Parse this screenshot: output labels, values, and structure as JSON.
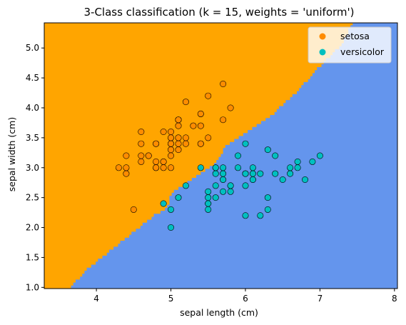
{
  "chart_data": {
    "type": "scatter",
    "title": "3-Class classification (k = 15, weights = 'uniform')",
    "xlabel": "sepal length (cm)",
    "ylabel": "sepal width (cm)",
    "xlim": [
      3.3,
      8.04
    ],
    "ylim": [
      0.98,
      5.42
    ],
    "x_ticks": [
      "4",
      "5",
      "6",
      "7",
      "8"
    ],
    "y_ticks": [
      "1.0",
      "1.5",
      "2.0",
      "2.5",
      "3.0",
      "3.5",
      "4.0",
      "4.5",
      "5.0"
    ],
    "grid": false,
    "legend": "top-right",
    "colors": {
      "region_setosa": "#ffa500",
      "region_versicolor": "#6495ed",
      "point_setosa": "#ff8c00",
      "point_versicolor": "#00bfbf",
      "edge": "#000000"
    },
    "decision_boundary": [
      [
        3.65,
        0.98
      ],
      [
        3.9,
        1.3
      ],
      [
        4.15,
        1.55
      ],
      [
        4.45,
        1.85
      ],
      [
        4.8,
        2.2
      ],
      [
        4.95,
        2.3
      ],
      [
        5.0,
        2.55
      ],
      [
        5.25,
        2.75
      ],
      [
        5.6,
        3.05
      ],
      [
        5.75,
        3.35
      ],
      [
        6.0,
        3.55
      ],
      [
        6.35,
        3.85
      ],
      [
        6.7,
        4.25
      ],
      [
        6.95,
        4.6
      ],
      [
        7.3,
        5.05
      ],
      [
        7.45,
        5.42
      ]
    ],
    "series": [
      {
        "name": "setosa",
        "x": [
          4.3,
          4.4,
          4.4,
          4.4,
          4.5,
          4.6,
          4.6,
          4.6,
          4.6,
          4.7,
          4.7,
          4.8,
          4.8,
          4.8,
          4.8,
          4.8,
          4.9,
          4.9,
          4.9,
          4.9,
          5.0,
          5.0,
          5.0,
          5.0,
          5.0,
          5.0,
          5.0,
          5.0,
          5.1,
          5.1,
          5.1,
          5.1,
          5.1,
          5.1,
          5.1,
          5.1,
          5.2,
          5.2,
          5.2,
          5.3,
          5.4,
          5.4,
          5.4,
          5.4,
          5.4,
          5.5,
          5.5,
          5.7,
          5.7,
          5.8
        ],
        "y": [
          3.0,
          2.9,
          3.0,
          3.2,
          2.3,
          3.1,
          3.2,
          3.4,
          3.6,
          3.2,
          3.2,
          3.0,
          3.0,
          3.1,
          3.4,
          3.4,
          3.0,
          3.1,
          3.1,
          3.6,
          3.0,
          3.2,
          3.3,
          3.4,
          3.4,
          3.5,
          3.5,
          3.6,
          3.3,
          3.4,
          3.5,
          3.5,
          3.7,
          3.8,
          3.8,
          3.8,
          3.4,
          3.5,
          4.1,
          3.7,
          3.4,
          3.4,
          3.7,
          3.9,
          3.9,
          3.5,
          4.2,
          3.8,
          4.4,
          4.0
        ]
      },
      {
        "name": "versicolor",
        "x": [
          4.9,
          5.0,
          5.0,
          5.1,
          5.2,
          5.4,
          5.5,
          5.5,
          5.5,
          5.5,
          5.5,
          5.6,
          5.6,
          5.6,
          5.6,
          5.6,
          5.7,
          5.7,
          5.7,
          5.7,
          5.7,
          5.8,
          5.8,
          5.8,
          5.9,
          5.9,
          6.0,
          6.0,
          6.0,
          6.0,
          6.0,
          6.1,
          6.1,
          6.1,
          6.1,
          6.2,
          6.2,
          6.3,
          6.3,
          6.3,
          6.4,
          6.4,
          6.5,
          6.6,
          6.6,
          6.7,
          6.7,
          6.8,
          6.9,
          7.0
        ],
        "y": [
          2.4,
          2.0,
          2.3,
          2.5,
          2.7,
          3.0,
          2.3,
          2.4,
          2.4,
          2.5,
          2.6,
          2.5,
          2.7,
          2.9,
          3.0,
          3.0,
          2.6,
          2.8,
          2.8,
          2.9,
          3.0,
          2.6,
          2.7,
          2.7,
          3.0,
          3.2,
          2.2,
          2.7,
          2.9,
          3.4,
          2.9,
          2.8,
          2.8,
          2.9,
          3.0,
          2.2,
          2.9,
          2.3,
          2.5,
          3.3,
          2.9,
          3.2,
          2.8,
          2.9,
          3.0,
          3.0,
          3.1,
          2.8,
          3.1,
          3.2
        ]
      }
    ]
  }
}
